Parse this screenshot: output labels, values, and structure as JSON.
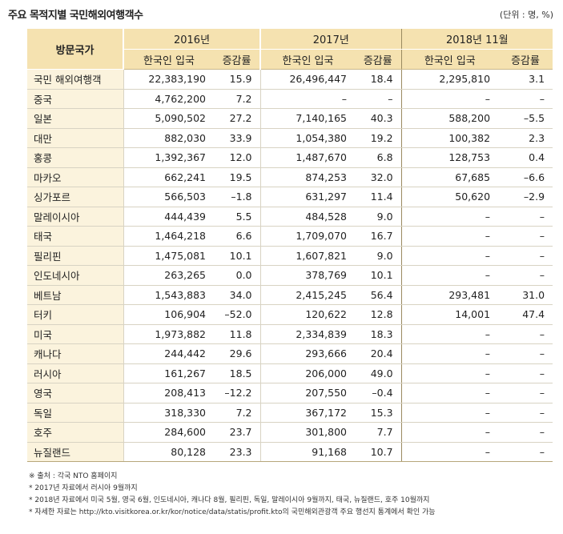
{
  "title": "주요 목적지별  국민해외여행객수",
  "unit": "(단위 : 명, %)",
  "headers": {
    "country": "방문국가",
    "periods": [
      "2016년",
      "2017년",
      "2018년 11월"
    ],
    "sub": [
      "한국인 입국",
      "증감률"
    ]
  },
  "rows": [
    {
      "name": "국민 해외여행객",
      "v": [
        "22,383,190",
        "15.9",
        "26,496,447",
        "18.4",
        "2,295,810",
        "3.1"
      ]
    },
    {
      "name": "중국",
      "v": [
        "4,762,200",
        "7.2",
        "–",
        "–",
        "–",
        "–"
      ]
    },
    {
      "name": "일본",
      "v": [
        "5,090,502",
        "27.2",
        "7,140,165",
        "40.3",
        "588,200",
        "–5.5"
      ]
    },
    {
      "name": "대만",
      "v": [
        "882,030",
        "33.9",
        "1,054,380",
        "19.2",
        "100,382",
        "2.3"
      ]
    },
    {
      "name": "홍콩",
      "v": [
        "1,392,367",
        "12.0",
        "1,487,670",
        "6.8",
        "128,753",
        "0.4"
      ]
    },
    {
      "name": "마카오",
      "v": [
        "662,241",
        "19.5",
        "874,253",
        "32.0",
        "67,685",
        "–6.6"
      ]
    },
    {
      "name": "싱가포르",
      "v": [
        "566,503",
        "–1.8",
        "631,297",
        "11.4",
        "50,620",
        "–2.9"
      ]
    },
    {
      "name": "말레이시아",
      "v": [
        "444,439",
        "5.5",
        "484,528",
        "9.0",
        "–",
        "–"
      ]
    },
    {
      "name": "태국",
      "v": [
        "1,464,218",
        "6.6",
        "1,709,070",
        "16.7",
        "–",
        "–"
      ]
    },
    {
      "name": "필리핀",
      "v": [
        "1,475,081",
        "10.1",
        "1,607,821",
        "9.0",
        "–",
        "–"
      ]
    },
    {
      "name": "인도네시아",
      "v": [
        "263,265",
        "0.0",
        "378,769",
        "10.1",
        "–",
        "–"
      ]
    },
    {
      "name": "베트남",
      "v": [
        "1,543,883",
        "34.0",
        "2,415,245",
        "56.4",
        "293,481",
        "31.0"
      ]
    },
    {
      "name": "터키",
      "v": [
        "106,904",
        "–52.0",
        "120,622",
        "12.8",
        "14,001",
        "47.4"
      ]
    },
    {
      "name": "미국",
      "v": [
        "1,973,882",
        "11.8",
        "2,334,839",
        "18.3",
        "–",
        "–"
      ]
    },
    {
      "name": "캐나다",
      "v": [
        "244,442",
        "29.6",
        "293,666",
        "20.4",
        "–",
        "–"
      ]
    },
    {
      "name": "러시아",
      "v": [
        "161,267",
        "18.5",
        "206,000",
        "49.0",
        "–",
        "–"
      ]
    },
    {
      "name": "영국",
      "v": [
        "208,413",
        "–12.2",
        "207,550",
        "–0.4",
        "–",
        "–"
      ]
    },
    {
      "name": "독일",
      "v": [
        "318,330",
        "7.2",
        "367,172",
        "15.3",
        "–",
        "–"
      ]
    },
    {
      "name": "호주",
      "v": [
        "284,600",
        "23.7",
        "301,800",
        "7.7",
        "–",
        "–"
      ]
    },
    {
      "name": "뉴질랜드",
      "v": [
        "80,128",
        "23.3",
        "91,168",
        "10.7",
        "–",
        "–"
      ]
    }
  ],
  "notes": [
    "※ 출처 : 각국 NTO 홈페이지",
    "* 2017년 자료에서 러시아 9월까지",
    "* 2018년 자료에서 미국 5월, 영국 6월, 인도네시아, 캐나다 8월, 필리핀, 독일, 말레이시아 9월까지, 태국, 뉴질랜드, 호주 10월까지",
    "* 자세한  자료는 http://kto.visitkorea.or.kr/kor/notice/data/statis/profit.kto의 국민해외관광객 주요 행선지 통계에서 확인 가능"
  ]
}
